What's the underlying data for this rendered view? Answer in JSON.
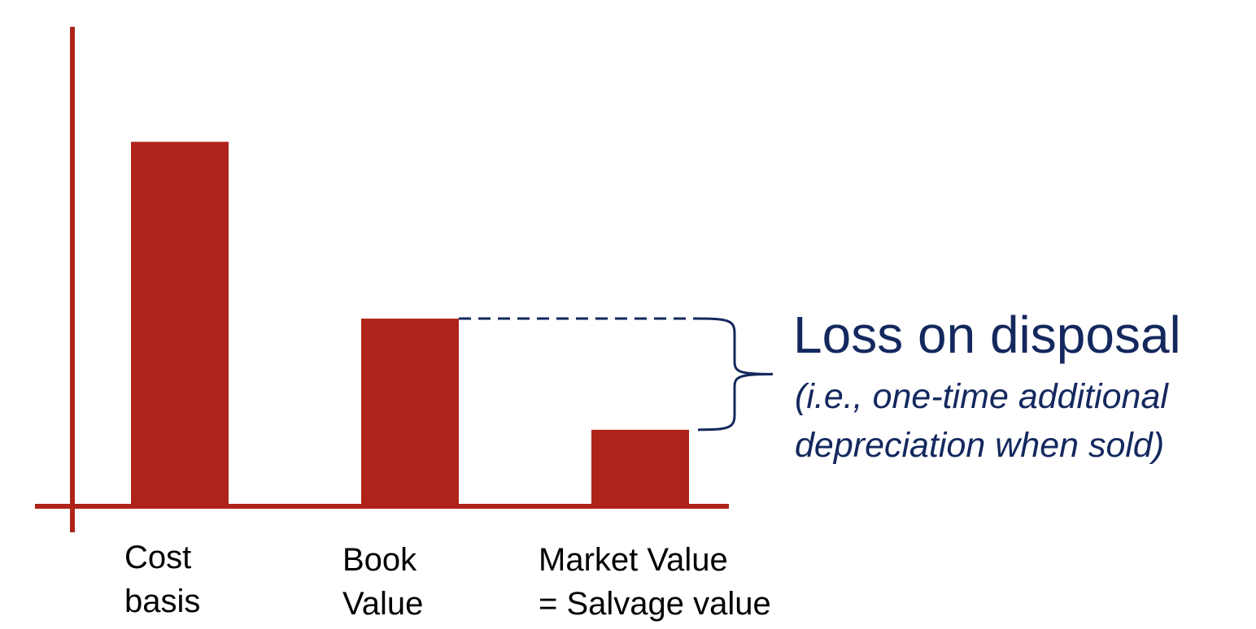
{
  "chart_data": {
    "type": "bar",
    "categories": [
      "Cost basis",
      "Book Value",
      "Market Value = Salvage value"
    ],
    "category_lines": [
      [
        "Cost",
        "basis"
      ],
      [
        "Book",
        "Value"
      ],
      [
        "Market Value",
        "= Salvage value"
      ]
    ],
    "values": [
      100,
      51.5,
      21
    ],
    "ylim": [
      0,
      130
    ],
    "grid": false,
    "annotation": {
      "title": "Loss on disposal",
      "subtitle_lines": [
        "(i.e., one-time additional",
        "depreciation when sold)"
      ]
    }
  },
  "colors": {
    "bar": "#AE241A",
    "axis": "#AE241A",
    "annotation": "#14285E",
    "label": "#000000"
  }
}
